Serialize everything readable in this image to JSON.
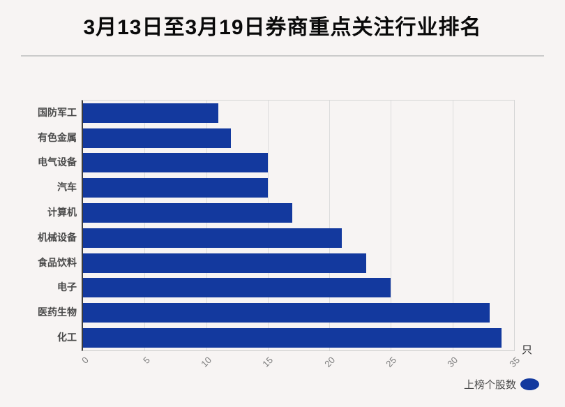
{
  "page": {
    "background": "#f7f4f3"
  },
  "header": {
    "title": "3月13日至3月19日券商重点关注行业排名"
  },
  "chart_data": {
    "type": "bar",
    "orientation": "horizontal",
    "title": "3月13日至3月19日券商重点关注行业排名",
    "categories_top_to_bottom": [
      "国防军工",
      "有色金属",
      "电气设备",
      "汽车",
      "计算机",
      "机械设备",
      "食品饮料",
      "电子",
      "医药生物",
      "化工"
    ],
    "series": [
      {
        "name": "上榜个股数",
        "values": [
          11,
          12,
          15,
          15,
          17,
          21,
          23,
          25,
          33,
          34
        ]
      }
    ],
    "x_ticks": [
      0,
      5,
      10,
      15,
      20,
      25,
      30,
      35
    ],
    "xlim": [
      0,
      35
    ],
    "unit_label": "只",
    "grid": true,
    "legend_position": "bottom-right",
    "colors": {
      "bar": "#13399e",
      "gridline": "#dcdcdc",
      "category_label": "#4a4a4a",
      "tick_label": "#7d7d7d",
      "title": "#0a0a0a",
      "background": "#f7f4f3"
    }
  },
  "legend": {
    "label": "上榜个股数",
    "marker_color": "#13399e"
  },
  "axis": {
    "unit": "只"
  }
}
